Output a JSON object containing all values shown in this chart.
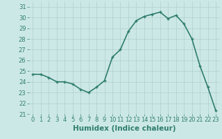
{
  "x": [
    0,
    1,
    2,
    3,
    4,
    5,
    6,
    7,
    8,
    9,
    10,
    11,
    12,
    13,
    14,
    15,
    16,
    17,
    18,
    19,
    20,
    21,
    22,
    23
  ],
  "y": [
    24.7,
    24.7,
    24.4,
    24.0,
    24.0,
    23.8,
    23.3,
    23.0,
    23.5,
    24.1,
    26.3,
    27.0,
    28.7,
    29.7,
    30.1,
    30.3,
    30.5,
    29.9,
    30.2,
    29.4,
    28.0,
    25.5,
    23.5,
    21.3
  ],
  "line_color": "#2e7d6e",
  "bg_color": "#cce8e6",
  "grid_color": "#aecfcc",
  "xlabel": "Humidex (Indice chaleur)",
  "ylim": [
    21,
    31.5
  ],
  "xlim": [
    -0.5,
    23.5
  ],
  "yticks": [
    21,
    22,
    23,
    24,
    25,
    26,
    27,
    28,
    29,
    30,
    31
  ],
  "xticks": [
    0,
    1,
    2,
    3,
    4,
    5,
    6,
    7,
    8,
    9,
    10,
    11,
    12,
    13,
    14,
    15,
    16,
    17,
    18,
    19,
    20,
    21,
    22,
    23
  ],
  "markersize": 3.0,
  "linewidth": 1.2,
  "xlabel_fontsize": 7.5,
  "tick_fontsize": 6.0
}
